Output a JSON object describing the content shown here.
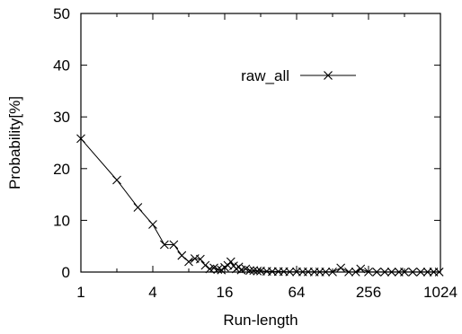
{
  "chart_data": {
    "type": "line",
    "title": "",
    "xlabel": "Run-length",
    "ylabel": "Probability[%]",
    "x_scale": "log2",
    "xlim": [
      1,
      1024
    ],
    "ylim": [
      0,
      50
    ],
    "x_ticks": [
      1,
      4,
      16,
      64,
      256,
      1024
    ],
    "x_tick_labels": [
      "1",
      "4",
      "16",
      "64",
      "256",
      "1024"
    ],
    "y_ticks": [
      0,
      10,
      20,
      30,
      40,
      50
    ],
    "y_tick_labels": [
      "0",
      "10",
      "20",
      "30",
      "40",
      "50"
    ],
    "grid": false,
    "legend_position": "top-right",
    "series": [
      {
        "name": "raw_all",
        "marker": "x",
        "color": "#000000",
        "points": [
          [
            1,
            25.8
          ],
          [
            2,
            17.8
          ],
          [
            3,
            12.5
          ],
          [
            4,
            9.2
          ],
          [
            5,
            5.3
          ],
          [
            6,
            5.3
          ],
          [
            7,
            3.2
          ],
          [
            8,
            2.0
          ],
          [
            9,
            2.6
          ],
          [
            10,
            2.5
          ],
          [
            11,
            1.3
          ],
          [
            12,
            0.6
          ],
          [
            13,
            0.8
          ],
          [
            14,
            0.5
          ],
          [
            15,
            0.4
          ],
          [
            16,
            0.9
          ],
          [
            17,
            1.3
          ],
          [
            18,
            2.0
          ],
          [
            19,
            1.2
          ],
          [
            20,
            0.6
          ],
          [
            21,
            1.0
          ],
          [
            22,
            0.4
          ],
          [
            24,
            0.6
          ],
          [
            26,
            0.3
          ],
          [
            28,
            0.3
          ],
          [
            30,
            0.2
          ],
          [
            32,
            0.2
          ],
          [
            36,
            0.15
          ],
          [
            40,
            0.1
          ],
          [
            45,
            0.1
          ],
          [
            50,
            0.08
          ],
          [
            56,
            0.05
          ],
          [
            64,
            0.05
          ],
          [
            72,
            0.04
          ],
          [
            80,
            0.04
          ],
          [
            90,
            0.03
          ],
          [
            100,
            0.03
          ],
          [
            112,
            0.03
          ],
          [
            128,
            0.03
          ],
          [
            150,
            0.8
          ],
          [
            175,
            0.02
          ],
          [
            200,
            0.02
          ],
          [
            220,
            0.6
          ],
          [
            256,
            0.02
          ],
          [
            300,
            0.01
          ],
          [
            350,
            0.01
          ],
          [
            400,
            0.01
          ],
          [
            460,
            0.01
          ],
          [
            512,
            0.01
          ],
          [
            600,
            0.01
          ],
          [
            700,
            0.01
          ],
          [
            800,
            0.01
          ],
          [
            900,
            0.01
          ],
          [
            1000,
            0.01
          ]
        ]
      }
    ]
  }
}
